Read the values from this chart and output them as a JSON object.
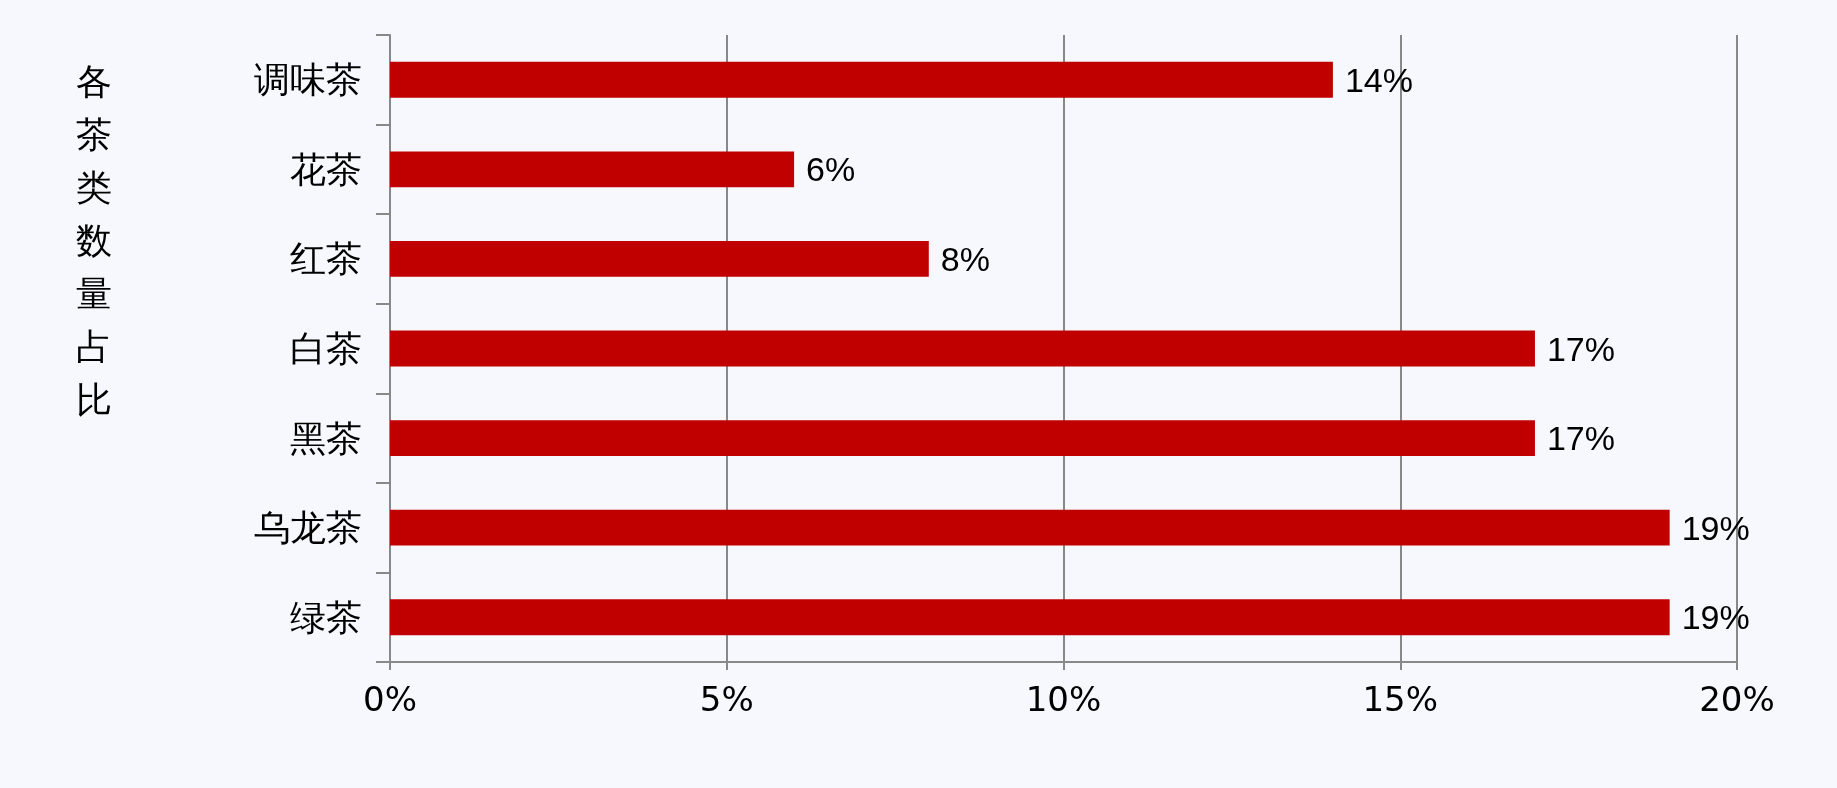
{
  "chart_data": {
    "type": "bar",
    "orientation": "horizontal",
    "ylabel": "各茶类数量占比",
    "categories": [
      "调味茶",
      "花茶",
      "红茶",
      "白茶",
      "黑茶",
      "乌龙茶",
      "绿茶"
    ],
    "values": [
      14,
      6,
      8,
      17,
      17,
      19,
      19
    ],
    "value_labels": [
      "14%",
      "6%",
      "8%",
      "17%",
      "17%",
      "19%",
      "19%"
    ],
    "color": "#c00000",
    "xlim": [
      0,
      20
    ],
    "xticks": [
      {
        "value": 0,
        "label": "0%"
      },
      {
        "value": 5,
        "label": "5%"
      },
      {
        "value": 10,
        "label": "10%"
      },
      {
        "value": 15,
        "label": "15%"
      },
      {
        "value": 20,
        "label": "20%"
      }
    ],
    "grid": "x"
  }
}
